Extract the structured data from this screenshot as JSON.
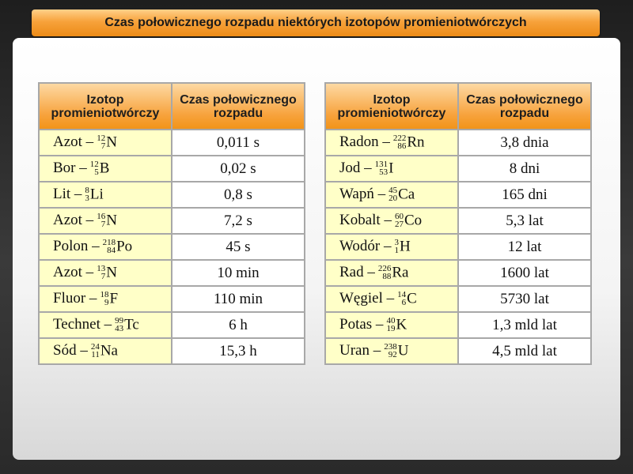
{
  "title": "Czas połowicznego rozpadu niektórych izotopów promieniotwórczych",
  "headers": {
    "isotope": "Izotop promieniotwórczy",
    "halflife": "Czas połowicznego rozpadu"
  },
  "left_rows": [
    {
      "name": "Azot –",
      "mass": "12",
      "atomic": "7",
      "symbol": "N",
      "halflife": "0,011 s"
    },
    {
      "name": "Bor –",
      "mass": "12",
      "atomic": "5",
      "symbol": "B",
      "halflife": "0,02 s"
    },
    {
      "name": "Lit –",
      "mass": "8",
      "atomic": "3",
      "symbol": "Li",
      "halflife": "0,8 s"
    },
    {
      "name": "Azot –",
      "mass": "16",
      "atomic": "7",
      "symbol": "N",
      "halflife": "7,2 s"
    },
    {
      "name": "Polon –",
      "mass": "218",
      "atomic": "84",
      "symbol": "Po",
      "halflife": "45 s"
    },
    {
      "name": "Azot –",
      "mass": "13",
      "atomic": "7",
      "symbol": "N",
      "halflife": "10 min"
    },
    {
      "name": "Fluor –",
      "mass": "18",
      "atomic": "9",
      "symbol": "F",
      "halflife": "110 min"
    },
    {
      "name": "Technet –",
      "mass": "99",
      "atomic": "43",
      "symbol": "Tc",
      "halflife": "6 h"
    },
    {
      "name": "Sód –",
      "mass": "24",
      "atomic": "11",
      "symbol": "Na",
      "halflife": "15,3 h"
    }
  ],
  "right_rows": [
    {
      "name": "Radon –",
      "mass": "222",
      "atomic": "86",
      "symbol": "Rn",
      "halflife": "3,8 dnia"
    },
    {
      "name": "Jod –",
      "mass": "131",
      "atomic": "53",
      "symbol": "I",
      "halflife": "8 dni"
    },
    {
      "name": "Wapń –",
      "mass": "45",
      "atomic": "20",
      "symbol": "Ca",
      "halflife": "165 dni"
    },
    {
      "name": "Kobalt –",
      "mass": "60",
      "atomic": "27",
      "symbol": "Co",
      "halflife": "5,3 lat"
    },
    {
      "name": "Wodór –",
      "mass": "3",
      "atomic": "1",
      "symbol": "H",
      "halflife": "12 lat"
    },
    {
      "name": "Rad –",
      "mass": "226",
      "atomic": "88",
      "symbol": "Ra",
      "halflife": "1600 lat"
    },
    {
      "name": "Węgiel –",
      "mass": "14",
      "atomic": "6",
      "symbol": "C",
      "halflife": "5730 lat"
    },
    {
      "name": "Potas –",
      "mass": "40",
      "atomic": "19",
      "symbol": "K",
      "halflife": "1,3 mld lat"
    },
    {
      "name": "Uran –",
      "mass": "238",
      "atomic": "92",
      "symbol": "U",
      "halflife": "4,5 mld lat"
    }
  ],
  "colors": {
    "header_orange": "#f7a23b",
    "name_cell_bg": "#ffffc8",
    "border": "#a8a8a8"
  }
}
